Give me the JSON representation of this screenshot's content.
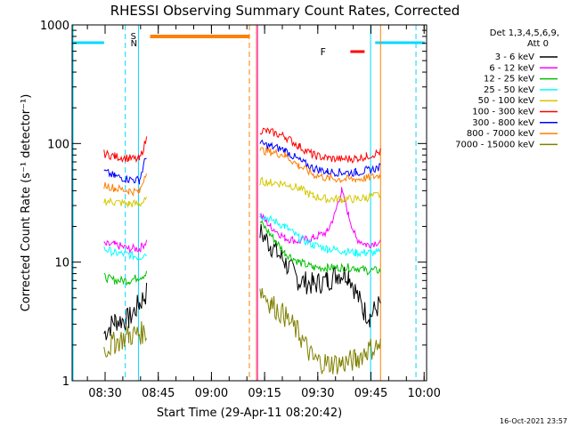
{
  "chart_data": {
    "type": "line",
    "title": "RHESSI Observing Summary Count Rates, Corrected",
    "xlabel": "Start Time (29-Apr-11 08:20:42)",
    "ylabel": "Corrected Count Rate (s⁻¹ detector⁻¹)",
    "y_scale": "log",
    "ylim": [
      1,
      1000
    ],
    "y_ticks": [
      1,
      10,
      100,
      1000
    ],
    "y_tick_labels": [
      "1",
      "10",
      "100",
      "1000"
    ],
    "xlim_minutes": [
      0,
      100
    ],
    "x_tick_labels": [
      "08:30",
      "08:45",
      "09:00",
      "09:15",
      "09:30",
      "09:45",
      "10:00"
    ],
    "x_tick_values_minutes": [
      9.3,
      24.3,
      39.3,
      54.3,
      69.3,
      84.3,
      99.3
    ],
    "legend_header": [
      "Det 1,3,4,5,6,9,",
      "Att 0"
    ],
    "legend_position": "right",
    "timestamp": "16-Oct-2021 23:57",
    "flags": [
      {
        "label": "S",
        "color": "#ff7f00"
      },
      {
        "label": "N",
        "color": "#00d8ff"
      },
      {
        "label": "F",
        "color": "#ff0000"
      }
    ],
    "series": [
      {
        "name": "3 - 6 keV",
        "color": "#000000",
        "points": [
          [
            9,
            2.5
          ],
          [
            12,
            3.2
          ],
          [
            16,
            3.3
          ],
          [
            19,
            4.5
          ],
          [
            21,
            5.5
          ],
          [
            53,
            18
          ],
          [
            56,
            14
          ],
          [
            60,
            10
          ],
          [
            64,
            7
          ],
          [
            68,
            6.5
          ],
          [
            72,
            7
          ],
          [
            75,
            8
          ],
          [
            78,
            8
          ],
          [
            82,
            4
          ],
          [
            84,
            3.5
          ],
          [
            87,
            4.5
          ]
        ]
      },
      {
        "name": "6 - 12 keV",
        "color": "#ff00ff",
        "points": [
          [
            9,
            14
          ],
          [
            12,
            14
          ],
          [
            16,
            13
          ],
          [
            19,
            13
          ],
          [
            21,
            15
          ],
          [
            53,
            25
          ],
          [
            56,
            20
          ],
          [
            60,
            16
          ],
          [
            64,
            15
          ],
          [
            68,
            16
          ],
          [
            72,
            18
          ],
          [
            74,
            25
          ],
          [
            76,
            40
          ],
          [
            78,
            25
          ],
          [
            80,
            16
          ],
          [
            83,
            14
          ],
          [
            87,
            15
          ]
        ]
      },
      {
        "name": "12 - 25 keV",
        "color": "#00c000",
        "points": [
          [
            9,
            7.5
          ],
          [
            12,
            7
          ],
          [
            16,
            7
          ],
          [
            19,
            7.5
          ],
          [
            21,
            8
          ],
          [
            53,
            22
          ],
          [
            56,
            17
          ],
          [
            60,
            12
          ],
          [
            64,
            10
          ],
          [
            68,
            9
          ],
          [
            72,
            9
          ],
          [
            76,
            9
          ],
          [
            80,
            9
          ],
          [
            83,
            8.5
          ],
          [
            87,
            8.5
          ]
        ]
      },
      {
        "name": "25 - 50 keV",
        "color": "#00ffff",
        "points": [
          [
            9,
            13
          ],
          [
            12,
            12
          ],
          [
            16,
            11.5
          ],
          [
            19,
            11
          ],
          [
            21,
            12
          ],
          [
            53,
            25
          ],
          [
            56,
            23
          ],
          [
            60,
            20
          ],
          [
            64,
            16
          ],
          [
            68,
            14
          ],
          [
            72,
            13
          ],
          [
            76,
            12.5
          ],
          [
            80,
            12
          ],
          [
            83,
            12
          ],
          [
            87,
            12
          ]
        ]
      },
      {
        "name": "50 - 100 keV",
        "color": "#d4c800",
        "points": [
          [
            9,
            33
          ],
          [
            12,
            32
          ],
          [
            16,
            31
          ],
          [
            19,
            31
          ],
          [
            21,
            33
          ],
          [
            53,
            48
          ],
          [
            56,
            47
          ],
          [
            60,
            46
          ],
          [
            64,
            42
          ],
          [
            68,
            36
          ],
          [
            72,
            34
          ],
          [
            76,
            34
          ],
          [
            80,
            34
          ],
          [
            83,
            35
          ],
          [
            87,
            37
          ]
        ]
      },
      {
        "name": "100 - 300 keV",
        "color": "#ff0000",
        "points": [
          [
            9,
            82
          ],
          [
            12,
            78
          ],
          [
            16,
            75
          ],
          [
            19,
            73
          ],
          [
            21,
            110
          ],
          [
            53,
            130
          ],
          [
            56,
            125
          ],
          [
            60,
            115
          ],
          [
            64,
            95
          ],
          [
            68,
            80
          ],
          [
            72,
            75
          ],
          [
            76,
            74
          ],
          [
            80,
            75
          ],
          [
            83,
            78
          ],
          [
            87,
            85
          ]
        ]
      },
      {
        "name": "300 - 800 keV",
        "color": "#0000ff",
        "points": [
          [
            9,
            58
          ],
          [
            12,
            53
          ],
          [
            16,
            50
          ],
          [
            19,
            49
          ],
          [
            21,
            80
          ],
          [
            53,
            100
          ],
          [
            56,
            95
          ],
          [
            60,
            88
          ],
          [
            64,
            72
          ],
          [
            68,
            62
          ],
          [
            72,
            58
          ],
          [
            76,
            57
          ],
          [
            80,
            57
          ],
          [
            83,
            59
          ],
          [
            87,
            63
          ]
        ]
      },
      {
        "name": "800 - 7000 keV",
        "color": "#ff7f00",
        "points": [
          [
            9,
            45
          ],
          [
            12,
            42
          ],
          [
            16,
            40
          ],
          [
            19,
            39
          ],
          [
            21,
            60
          ],
          [
            53,
            88
          ],
          [
            56,
            85
          ],
          [
            60,
            80
          ],
          [
            64,
            65
          ],
          [
            68,
            55
          ],
          [
            72,
            51
          ],
          [
            76,
            50
          ],
          [
            80,
            50
          ],
          [
            83,
            51
          ],
          [
            87,
            54
          ]
        ]
      },
      {
        "name": "7000 - 15000 keV",
        "color": "#808000",
        "points": [
          [
            9,
            1.8
          ],
          [
            12,
            2.1
          ],
          [
            16,
            2.4
          ],
          [
            19,
            2.5
          ],
          [
            21,
            2.6
          ],
          [
            53,
            6
          ],
          [
            56,
            4.5
          ],
          [
            60,
            3.5
          ],
          [
            64,
            2.5
          ],
          [
            68,
            1.5
          ],
          [
            72,
            1.4
          ],
          [
            76,
            1.4
          ],
          [
            80,
            1.5
          ],
          [
            83,
            1.8
          ],
          [
            87,
            2
          ]
        ]
      }
    ]
  }
}
